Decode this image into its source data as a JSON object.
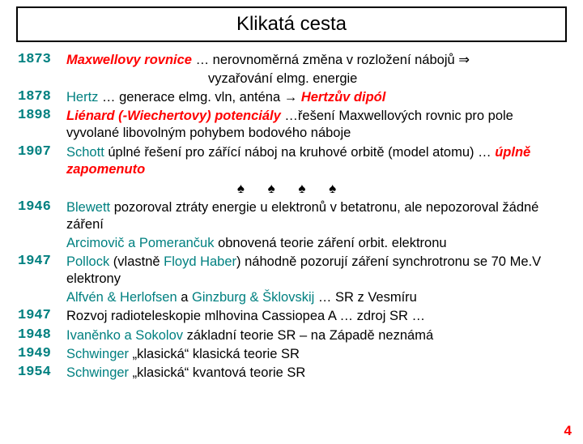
{
  "title": "Klikatá cesta",
  "page_number": "4",
  "colors": {
    "year": "#008080",
    "term": "#ff0000",
    "text": "#000000",
    "border": "#000000",
    "pagenum": "#ff0000"
  },
  "spades": "♠   ♠   ♠   ♠",
  "rows": [
    {
      "year": "1873",
      "parts": [
        {
          "t": "Maxwellovy rovnice",
          "c": "#ff0000",
          "b": true,
          "i": true
        },
        {
          "t": " … nerovnoměrná změna v rozložení nábojů ⇒"
        }
      ]
    },
    {
      "year": "",
      "indent": true,
      "parts": [
        {
          "t": "vyzařování elmg. energie"
        }
      ]
    },
    {
      "year": "1878",
      "parts": [
        {
          "t": "Hertz",
          "c": "#008080"
        },
        {
          "t": " … generace elmg. vln, anténa → "
        },
        {
          "t": "Hertzův dipól",
          "c": "#ff0000",
          "b": true,
          "i": true
        }
      ]
    },
    {
      "year": "1898",
      "parts": [
        {
          "t": "Liénard (-Wiechertovy) potenciály",
          "c": "#ff0000",
          "b": true,
          "i": true
        },
        {
          "t": " …řešení Maxwellových rovnic pro pole vyvolané libovolným pohybem bodového náboje"
        }
      ]
    },
    {
      "year": "1907",
      "parts": [
        {
          "t": "Schott",
          "c": "#008080"
        },
        {
          "t": "   úplné řešení pro zářící náboj na kruhové orbitě (model atomu) … "
        },
        {
          "t": "úplně zapomenuto",
          "c": "#ff0000",
          "b": true,
          "i": true
        }
      ]
    },
    {
      "spades": true
    },
    {
      "year": "1946",
      "parts": [
        {
          "t": "Blewett",
          "c": "#008080"
        },
        {
          "t": " pozoroval ztráty energie u elektronů v betatronu, ale nepozoroval žádné záření"
        }
      ]
    },
    {
      "year": "",
      "parts": [
        {
          "t": "Arcimovič a Pomerančuk",
          "c": "#008080"
        },
        {
          "t": " obnovená teorie záření orbit. elektronu"
        }
      ]
    },
    {
      "year": "1947",
      "parts": [
        {
          "t": "Pollock",
          "c": "#008080"
        },
        {
          "t": " (vlastně "
        },
        {
          "t": "Floyd Haber",
          "c": "#008080"
        },
        {
          "t": ") náhodně pozorují záření synchrotronu se 70 Me.V elektrony"
        }
      ]
    },
    {
      "year": "",
      "parts": [
        {
          "t": "Alfvén & Herlofsen",
          "c": "#008080"
        },
        {
          "t": " a "
        },
        {
          "t": "Ginzburg & Šklovskij",
          "c": "#008080"
        },
        {
          "t": " … SR z Vesmíru"
        }
      ]
    },
    {
      "year": "1947",
      "parts": [
        {
          "t": "Rozvoj radioteleskopie mlhovina Cassiopea A … zdroj SR …"
        }
      ]
    },
    {
      "year": "1948",
      "parts": [
        {
          "t": "Ivaněnko a Sokolov",
          "c": "#008080"
        },
        {
          "t": "  základní teorie SR – na Západě neznámá"
        }
      ]
    },
    {
      "year": "1949",
      "parts": [
        {
          "t": "Schwinger",
          "c": "#008080"
        },
        {
          "t": "  „klasická“ klasická teorie SR"
        }
      ]
    },
    {
      "year": "1954",
      "parts": [
        {
          "t": "Schwinger",
          "c": "#008080"
        },
        {
          "t": "  „klasická“ kvantová teorie SR"
        }
      ]
    }
  ]
}
